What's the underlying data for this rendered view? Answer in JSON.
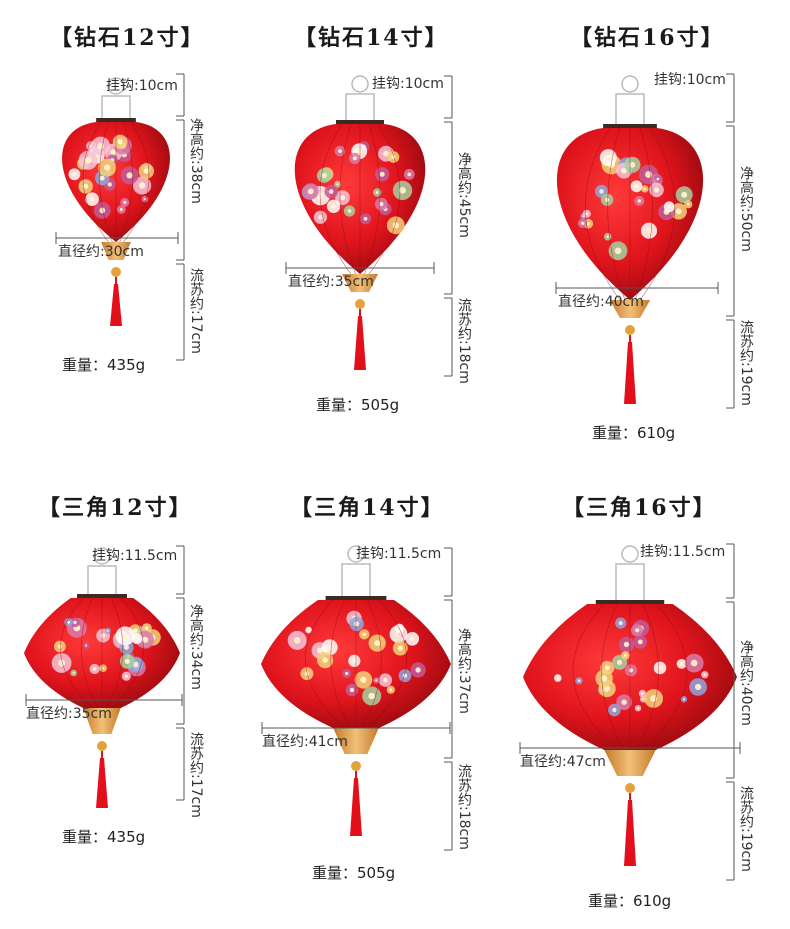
{
  "colors": {
    "lantern_red": "#e0141c",
    "gold": "#d7953e",
    "tassel": "#e3101c",
    "dim_line": "#555555"
  },
  "products": [
    {
      "title": "【钻石12寸】",
      "hook": "挂钩:10cm",
      "height": "净高约:38cm",
      "diameter": "直径约:30cm",
      "tassel": "流苏约:17cm",
      "weight": "重量：435g"
    },
    {
      "title": "【钻石14寸】",
      "hook": "挂钩:10cm",
      "height": "净高约:45cm",
      "diameter": "直径约:35cm",
      "tassel": "流苏约:18cm",
      "weight": "重量：505g"
    },
    {
      "title": "【钻石16寸】",
      "hook": "挂钩:10cm",
      "height": "净高约:50cm",
      "diameter": "直径约:40cm",
      "tassel": "流苏约:19cm",
      "weight": "重量：610g"
    },
    {
      "title": "【三角12寸】",
      "hook": "挂钩:11.5cm",
      "height": "净高约:34cm",
      "diameter": "直径约:35cm",
      "tassel": "流苏约:17cm",
      "weight": "重量：435g"
    },
    {
      "title": "【三角14寸】",
      "hook": "挂钩:11.5cm",
      "height": "净高约:37cm",
      "diameter": "直径约:41cm",
      "tassel": "流苏约:18cm",
      "weight": "重量：505g"
    },
    {
      "title": "【三角16寸】",
      "hook": "挂钩:11.5cm",
      "height": "净高约:40cm",
      "diameter": "直径约:47cm",
      "tassel": "流苏约:19cm",
      "weight": "重量：610g"
    }
  ]
}
